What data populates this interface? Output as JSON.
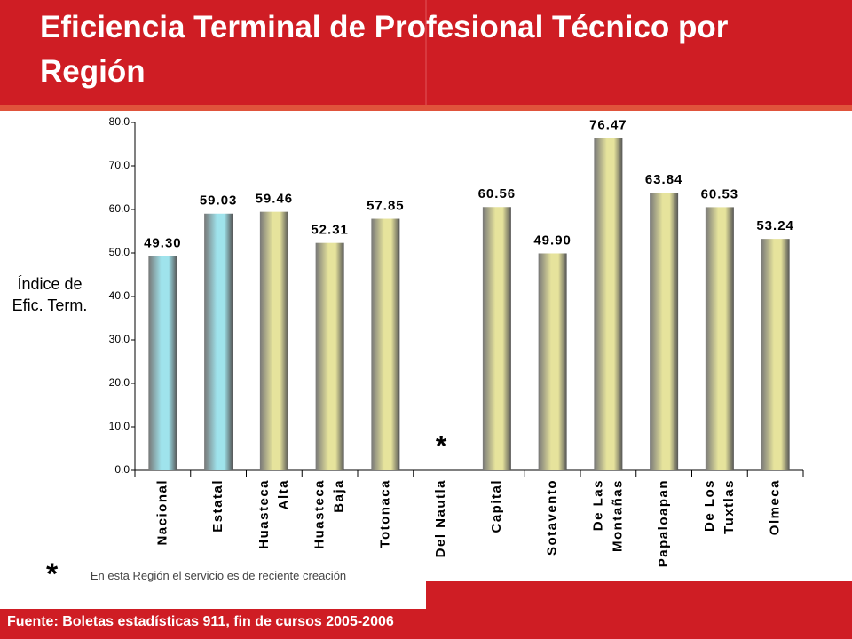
{
  "chart_data": {
    "type": "bar",
    "title": "Eficiencia Terminal de Profesional Técnico por Región",
    "y_label": "Índice de Efic. Term.",
    "categories": [
      "Nacional",
      "Estatal",
      "Huasteca Alta",
      "Huasteca Baja",
      "Totonaca",
      "Del Nautla",
      "Capital",
      "Sotavento",
      "De Las Montañas",
      "Papaloapan",
      "De Los Tuxtlas",
      "Olmeca"
    ],
    "values": [
      49.3,
      59.03,
      59.46,
      52.31,
      57.85,
      null,
      60.56,
      49.9,
      76.47,
      63.84,
      60.53,
      53.24
    ],
    "value_labels": [
      "49.30",
      "59.03",
      "59.46",
      "52.31",
      "57.85",
      null,
      "60.56",
      "49.90",
      "76.47",
      "63.84",
      "60.53",
      "53.24"
    ],
    "colors": [
      "#9fe3ec",
      "#9fe3ec",
      "#e6e39c",
      "#e6e39c",
      "#e6e39c",
      "#e6e39c",
      "#e6e39c",
      "#e6e39c",
      "#e6e39c",
      "#e6e39c",
      "#e6e39c",
      "#e6e39c"
    ],
    "annotation": "*",
    "footnote": {
      "marker": "*",
      "text": "En esta Región el servicio es de reciente creación"
    },
    "source": "Fuente: Boletas estadísticas 911, fin de cursos 2005-2006",
    "ylim": [
      0,
      80
    ],
    "yticks": [
      {
        "value": 0,
        "label": "0.0"
      },
      {
        "value": 10,
        "label": "10.0"
      },
      {
        "value": 20,
        "label": "20.0"
      },
      {
        "value": 30,
        "label": "30.0"
      },
      {
        "value": 40,
        "label": "40.0"
      },
      {
        "value": 50,
        "label": "50.0"
      },
      {
        "value": 60,
        "label": "60.0"
      },
      {
        "value": 70,
        "label": "70.0"
      },
      {
        "value": 80,
        "label": "80.0"
      }
    ]
  }
}
